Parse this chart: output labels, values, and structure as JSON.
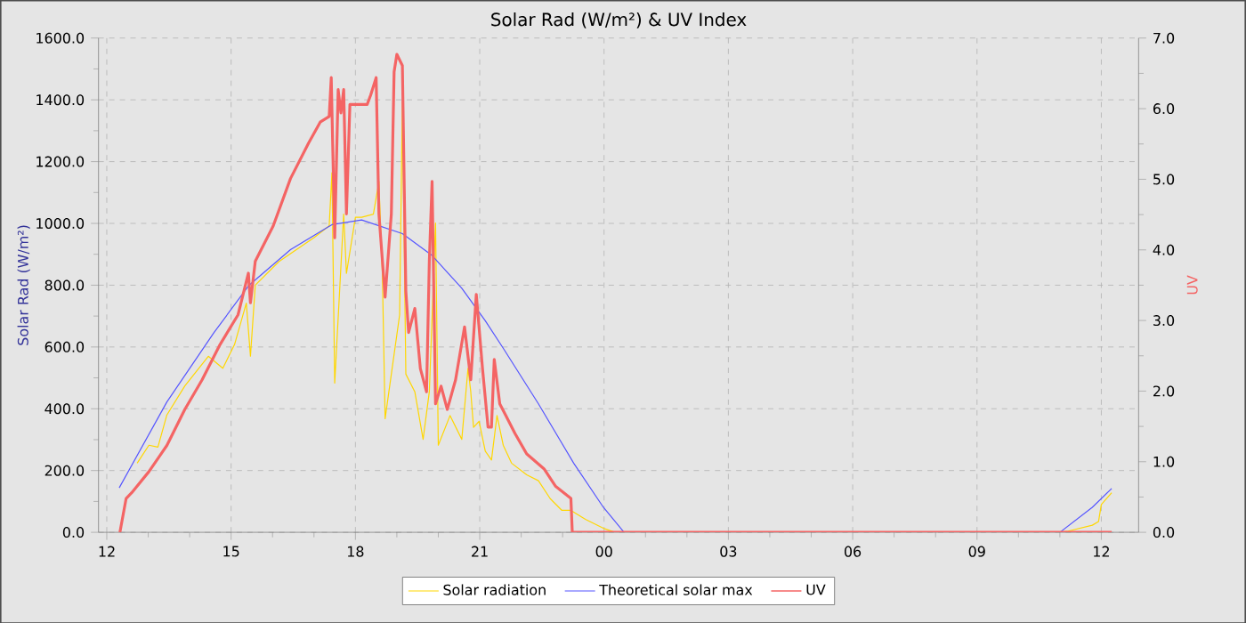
{
  "chart_data": {
    "type": "line",
    "title": "Solar Rad (W/m²) &  UV Index",
    "ylabel": "Solar Rad (W/m²)",
    "y2label": "UV",
    "xlim": [
      "2000-01-01T11:48",
      "2000-01-02T12:54"
    ],
    "ylim": [
      0,
      1600
    ],
    "y2lim": [
      0,
      7
    ],
    "xticks": [
      {
        "value": "2000-01-01T12:00",
        "label": "12"
      },
      {
        "value": "2000-01-01T15:00",
        "label": "15"
      },
      {
        "value": "2000-01-01T18:00",
        "label": "18"
      },
      {
        "value": "2000-01-01T21:00",
        "label": "21"
      },
      {
        "value": "2000-01-02T00:00",
        "label": "00"
      },
      {
        "value": "2000-01-02T03:00",
        "label": "03"
      },
      {
        "value": "2000-01-02T06:00",
        "label": "06"
      },
      {
        "value": "2000-01-02T09:00",
        "label": "09"
      },
      {
        "value": "2000-01-02T12:00",
        "label": "12"
      }
    ],
    "yticks": [
      {
        "value": 0,
        "label": "0.0"
      },
      {
        "value": 200,
        "label": "200.0"
      },
      {
        "value": 400,
        "label": "400.0"
      },
      {
        "value": 600,
        "label": "600.0"
      },
      {
        "value": 800,
        "label": "800.0"
      },
      {
        "value": 1000,
        "label": "1000.0"
      },
      {
        "value": 1200,
        "label": "1200.0"
      },
      {
        "value": 1400,
        "label": "1400.0"
      },
      {
        "value": 1600,
        "label": "1600.0"
      }
    ],
    "y2ticks": [
      {
        "value": 0,
        "label": "0.0"
      },
      {
        "value": 1,
        "label": "1.0"
      },
      {
        "value": 2,
        "label": "2.0"
      },
      {
        "value": 3,
        "label": "3.0"
      },
      {
        "value": 4,
        "label": "4.0"
      },
      {
        "value": 5,
        "label": "5.0"
      },
      {
        "value": 6,
        "label": "6.0"
      },
      {
        "value": 7,
        "label": "7.0"
      }
    ],
    "grid": true,
    "legend": "bottom",
    "line_style": "solid",
    "series": [
      {
        "name": "Solar radiation",
        "color": "#ffd700",
        "x": [
          "2000-01-01T12:44",
          "2000-01-01T13:01",
          "2000-01-01T13:14",
          "2000-01-01T13:27",
          "2000-01-01T13:53",
          "2000-01-01T14:27",
          "2000-01-01T14:48",
          "2000-01-01T15:05",
          "2000-01-01T15:22",
          "2000-01-01T15:28",
          "2000-01-01T15:35",
          "2000-01-01T16:09",
          "2000-01-01T17:00",
          "2000-01-01T17:22",
          "2000-01-01T17:26",
          "2000-01-01T17:30",
          "2000-01-01T17:43",
          "2000-01-01T17:47",
          "2000-01-01T18:00",
          "2000-01-01T18:09",
          "2000-01-01T18:26",
          "2000-01-01T18:34",
          "2000-01-01T18:39",
          "2000-01-01T18:43",
          "2000-01-01T18:52",
          "2000-01-01T19:04",
          "2000-01-01T19:08",
          "2000-01-01T19:13",
          "2000-01-01T19:26",
          "2000-01-01T19:38",
          "2000-01-01T19:47",
          "2000-01-01T19:56",
          "2000-01-01T20:00",
          "2000-01-01T20:17",
          "2000-01-01T20:34",
          "2000-01-01T20:43",
          "2000-01-01T20:47",
          "2000-01-01T20:51",
          "2000-01-01T20:59",
          "2000-01-01T21:08",
          "2000-01-01T21:17",
          "2000-01-01T21:25",
          "2000-01-01T21:34",
          "2000-01-01T21:46",
          "2000-01-01T22:08",
          "2000-01-01T22:25",
          "2000-01-01T22:42",
          "2000-01-01T22:59",
          "2000-01-01T23:12",
          "2000-01-01T23:33",
          "2000-01-01T23:59",
          "2000-01-02T00:16",
          "2000-01-02T11:00",
          "2000-01-02T11:12",
          "2000-01-02T11:47",
          "2000-01-02T11:56",
          "2000-01-02T12:00",
          "2000-01-02T12:15"
        ],
        "values": [
          224,
          282,
          276,
          380,
          474,
          570,
          531,
          608,
          742,
          570,
          800,
          876,
          954,
          992,
          1164,
          483,
          1030,
          838,
          1020,
          1020,
          1030,
          1135,
          838,
          368,
          512,
          704,
          1394,
          512,
          455,
          301,
          455,
          1001,
          282,
          378,
          301,
          531,
          455,
          340,
          359,
          263,
          234,
          378,
          282,
          224,
          186,
          167,
          109,
          71,
          71,
          42,
          13,
          0,
          0,
          4,
          23,
          35,
          90,
          128
        ]
      },
      {
        "name": "Theoretical solar max",
        "color": "#5555ff",
        "x": [
          "2000-01-01T12:18",
          "2000-01-01T13:27",
          "2000-01-01T14:35",
          "2000-01-01T15:26",
          "2000-01-01T16:26",
          "2000-01-01T17:26",
          "2000-01-01T18:09",
          "2000-01-01T19:08",
          "2000-01-01T19:51",
          "2000-01-01T20:34",
          "2000-01-01T21:08",
          "2000-01-01T21:34",
          "2000-01-01T22:25",
          "2000-01-01T23:16",
          "2000-01-01T23:59",
          "2000-01-02T00:29",
          "2000-01-02T11:00",
          "2000-01-02T11:47",
          "2000-01-02T12:15"
        ],
        "values": [
          144,
          422,
          646,
          800,
          915,
          996,
          1011,
          967,
          896,
          790,
          685,
          596,
          416,
          224,
          81,
          0,
          0,
          81,
          142
        ]
      },
      {
        "name": "UV",
        "color": "#f46464",
        "axis": "y2",
        "x": [
          "2000-01-01T12:19",
          "2000-01-01T12:28",
          "2000-01-01T12:36",
          "2000-01-01T13:01",
          "2000-01-01T13:27",
          "2000-01-01T13:53",
          "2000-01-01T14:18",
          "2000-01-01T14:44",
          "2000-01-01T15:10",
          "2000-01-01T15:25",
          "2000-01-01T15:28",
          "2000-01-01T15:35",
          "2000-01-01T16:01",
          "2000-01-01T16:26",
          "2000-01-01T16:52",
          "2000-01-01T17:09",
          "2000-01-01T17:22",
          "2000-01-01T17:25",
          "2000-01-01T17:30",
          "2000-01-01T17:35",
          "2000-01-01T17:39",
          "2000-01-01T17:43",
          "2000-01-01T17:47",
          "2000-01-01T17:52",
          "2000-01-01T17:56",
          "2000-01-01T18:17",
          "2000-01-01T18:22",
          "2000-01-01T18:30",
          "2000-01-01T18:34",
          "2000-01-01T18:43",
          "2000-01-01T18:52",
          "2000-01-01T18:56",
          "2000-01-01T19:00",
          "2000-01-01T19:08",
          "2000-01-01T19:13",
          "2000-01-01T19:17",
          "2000-01-01T19:26",
          "2000-01-01T19:34",
          "2000-01-01T19:43",
          "2000-01-01T19:47",
          "2000-01-01T19:51",
          "2000-01-01T19:56",
          "2000-01-01T20:04",
          "2000-01-01T20:13",
          "2000-01-01T20:25",
          "2000-01-01T20:38",
          "2000-01-01T20:47",
          "2000-01-01T20:55",
          "2000-01-01T21:04",
          "2000-01-01T21:12",
          "2000-01-01T21:17",
          "2000-01-01T21:21",
          "2000-01-01T21:29",
          "2000-01-01T21:38",
          "2000-01-01T21:51",
          "2000-01-01T22:08",
          "2000-01-01T22:33",
          "2000-01-01T22:50",
          "2000-01-01T23:12",
          "2000-01-01T23:14",
          "2000-01-02T12:15"
        ],
        "values": [
          0,
          0.48,
          0.56,
          0.86,
          1.23,
          1.74,
          2.16,
          2.66,
          3.08,
          3.67,
          3.25,
          3.84,
          4.34,
          5.01,
          5.51,
          5.81,
          5.89,
          6.44,
          4.17,
          6.27,
          5.94,
          6.27,
          4.51,
          6.06,
          6.06,
          6.06,
          6.19,
          6.44,
          4.51,
          3.33,
          4.51,
          6.52,
          6.77,
          6.61,
          3.42,
          2.83,
          3.17,
          2.32,
          1.99,
          3.84,
          4.97,
          1.82,
          2.07,
          1.74,
          2.16,
          2.91,
          2.16,
          3.37,
          2.32,
          1.49,
          1.49,
          2.45,
          1.82,
          1.65,
          1.4,
          1.11,
          0.9,
          0.65,
          0.48,
          0,
          0
        ]
      }
    ]
  }
}
